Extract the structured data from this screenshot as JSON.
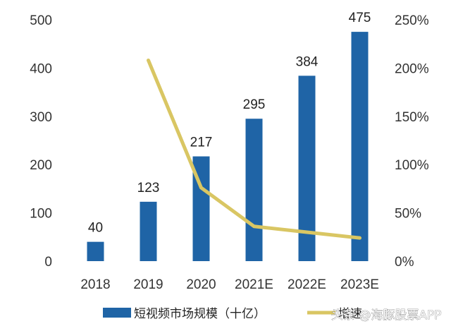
{
  "chart_data": {
    "type": "bar",
    "categories": [
      "2018",
      "2019",
      "2020",
      "2021E",
      "2022E",
      "2023E"
    ],
    "series": [
      {
        "name": "短视频市场规模（十亿）",
        "type": "bar",
        "axis": "left",
        "values": [
          40,
          123,
          217,
          295,
          384,
          475
        ],
        "color": "#1f64a6"
      },
      {
        "name": "增速",
        "type": "line",
        "axis": "right",
        "values": [
          null,
          208,
          76,
          36,
          30,
          24
        ],
        "color": "#d9c663"
      }
    ],
    "y_left": {
      "min": 0,
      "max": 500,
      "ticks": [
        0,
        100,
        200,
        300,
        400,
        500
      ]
    },
    "y_right": {
      "min": 0,
      "max": 250,
      "ticks": [
        "0%",
        "50%",
        "100%",
        "150%",
        "200%",
        "250%"
      ]
    },
    "data_labels": [
      "40",
      "123",
      "217",
      "295",
      "384",
      "475"
    ],
    "grid": false,
    "legend": {
      "placement": "bottom",
      "items": [
        "短视频市场规模（十亿）",
        "增速"
      ]
    }
  },
  "watermark": {
    "text": "头条 @海豚股票APP"
  }
}
